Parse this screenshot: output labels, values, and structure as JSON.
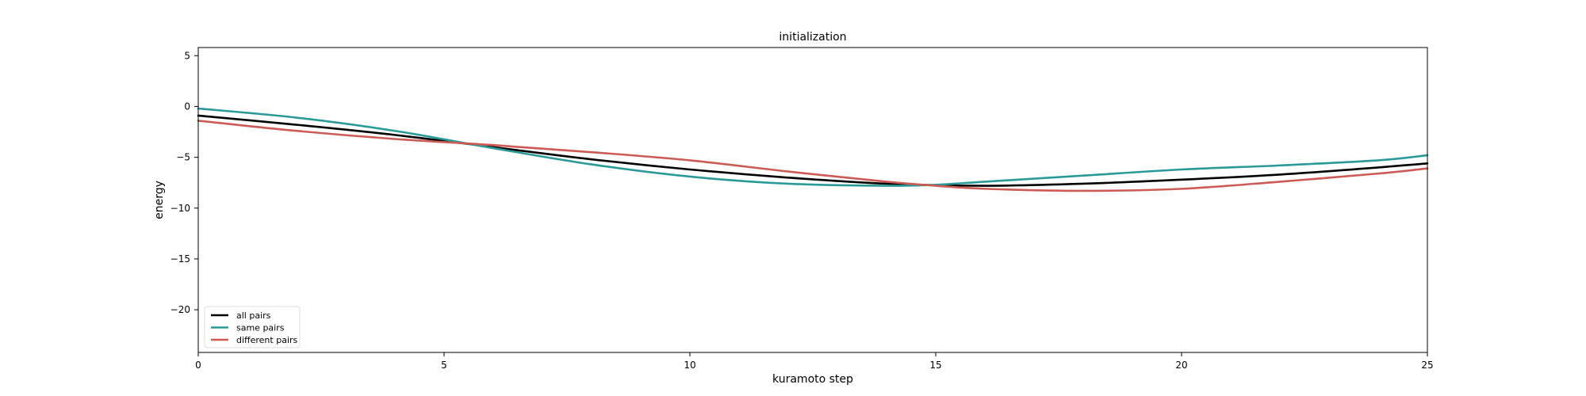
{
  "chart_data": {
    "type": "line",
    "title": "initialization",
    "xlabel": "kuramoto step",
    "ylabel": "energy",
    "xlim": [
      0,
      25
    ],
    "ylim": [
      -24.2,
      5.8
    ],
    "xticks": [
      0,
      5,
      10,
      15,
      20,
      25
    ],
    "yticks": [
      5,
      0,
      -5,
      -10,
      -15,
      -20
    ],
    "grid": false,
    "legend_position": "lower-left",
    "series": [
      {
        "name": "all pairs",
        "color": "#000000",
        "x": [
          0,
          2,
          4,
          6,
          8,
          10,
          12,
          14,
          16,
          18,
          20,
          22,
          24,
          25
        ],
        "y": [
          -0.9,
          -1.8,
          -2.8,
          -4.0,
          -5.2,
          -6.2,
          -7.0,
          -7.6,
          -7.8,
          -7.6,
          -7.2,
          -6.7,
          -6.0,
          -5.6
        ]
      },
      {
        "name": "same pairs",
        "color": "#2a9a98",
        "x": [
          0,
          2,
          4,
          6,
          8,
          10,
          12,
          14,
          15,
          16,
          18,
          20,
          22,
          24,
          25
        ],
        "y": [
          -0.2,
          -1.1,
          -2.4,
          -4.1,
          -5.7,
          -6.9,
          -7.6,
          -7.8,
          -7.7,
          -7.4,
          -6.8,
          -6.2,
          -5.8,
          -5.3,
          -4.8
        ]
      },
      {
        "name": "different pairs",
        "color": "#cc5a55",
        "x": [
          0,
          2,
          4,
          6,
          8,
          10,
          12,
          14,
          15,
          16,
          18,
          20,
          22,
          24,
          25
        ],
        "y": [
          -1.4,
          -2.4,
          -3.2,
          -3.8,
          -4.5,
          -5.3,
          -6.4,
          -7.4,
          -7.8,
          -8.1,
          -8.3,
          -8.1,
          -7.4,
          -6.6,
          -6.1
        ]
      }
    ]
  }
}
